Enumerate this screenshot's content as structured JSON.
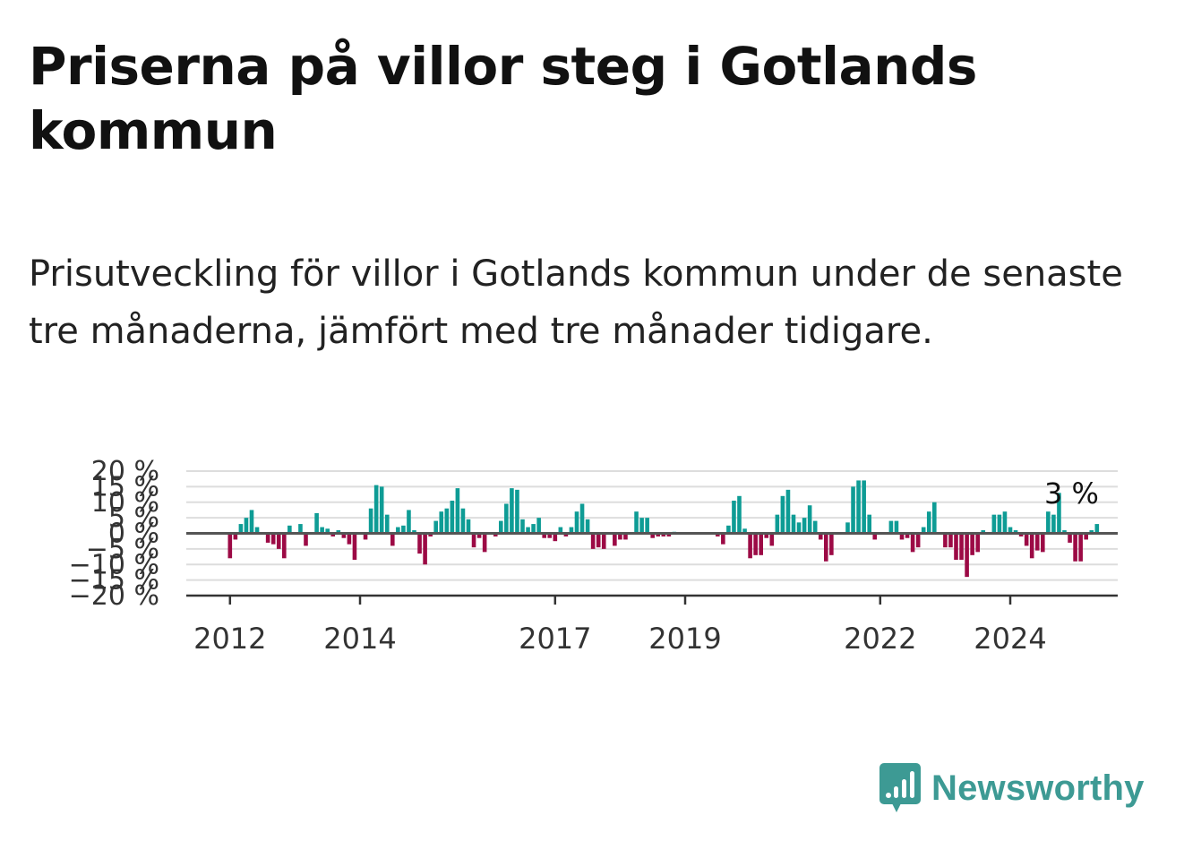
{
  "header": {
    "title": "Priserna på villor steg i Gotlands kommun",
    "subtitle": "Prisutveckling för villor i Gotlands kommun under de senaste tre månaderna, jämfört med tre månader tidigare."
  },
  "brand": {
    "name": "Newsworthy",
    "icon": "newsworthy-logo-icon",
    "color": "#3d9a94"
  },
  "colors": {
    "positive": "#0e9c95",
    "negative": "#9c0a45",
    "grid": "#dddddd",
    "zero_line": "#555555",
    "axis": "#333333"
  },
  "chart_data": {
    "type": "bar",
    "grid": true,
    "ylim": [
      -20,
      20
    ],
    "yticks": [
      20,
      15,
      10,
      5,
      0,
      -5,
      -10,
      -15,
      -20
    ],
    "ytick_labels": [
      "20 %",
      "15 %",
      "10 %",
      "5 %",
      "0 %",
      "−5 %",
      "−10 %",
      "−15 %",
      "−20 %"
    ],
    "x_start": "2012-01",
    "xtick_labels": [
      "2012",
      "2014",
      "2017",
      "2019",
      "2022",
      "2024"
    ],
    "xtick_values": [
      "2012-01",
      "2014-01",
      "2017-01",
      "2019-01",
      "2022-01",
      "2024-01"
    ],
    "last_label": "3 %",
    "values": [
      -8,
      -2,
      3,
      5,
      7.5,
      2,
      0,
      -3,
      -3.5,
      -5,
      -8,
      2.5,
      0,
      3,
      -4,
      0,
      6.5,
      2,
      1.5,
      -1,
      1,
      -1.5,
      -3.5,
      -8.5,
      0,
      -2,
      8,
      15.5,
      15,
      6,
      -4,
      2,
      2.5,
      7.5,
      1,
      -6.5,
      -10,
      -1,
      4,
      7,
      8,
      10.5,
      14.5,
      8,
      4.5,
      -4.5,
      -1.5,
      -6,
      0,
      -1,
      4,
      9.5,
      14.5,
      14,
      4.5,
      2,
      3,
      5,
      -1.5,
      -1.5,
      -2.5,
      2,
      -1,
      2,
      7,
      9.5,
      4.5,
      -5,
      -4.5,
      -5,
      0,
      -4,
      -2,
      -2,
      0,
      7,
      5,
      5,
      -1.5,
      -1,
      -1,
      -1,
      0.5,
      0,
      0,
      0,
      0,
      0,
      0,
      0,
      -1,
      -3.5,
      2.5,
      10.5,
      12,
      1.5,
      -8,
      -7,
      -7,
      -1.5,
      -4,
      6,
      12,
      14,
      6,
      3.5,
      5,
      9,
      4,
      -2,
      -9,
      -7,
      0,
      0,
      3.5,
      15,
      17,
      17,
      6,
      -2,
      0,
      0,
      4,
      4,
      -2,
      -1.5,
      -6,
      -4.5,
      2,
      7,
      10,
      0,
      -4.5,
      -4.5,
      -8.5,
      -8.5,
      -14,
      -7,
      -6,
      1,
      0,
      6,
      6,
      7,
      2,
      1,
      -1,
      -4,
      -8,
      -5.5,
      -6,
      7,
      6,
      13,
      1,
      -3,
      -9,
      -9,
      -2,
      1,
      3
    ]
  }
}
